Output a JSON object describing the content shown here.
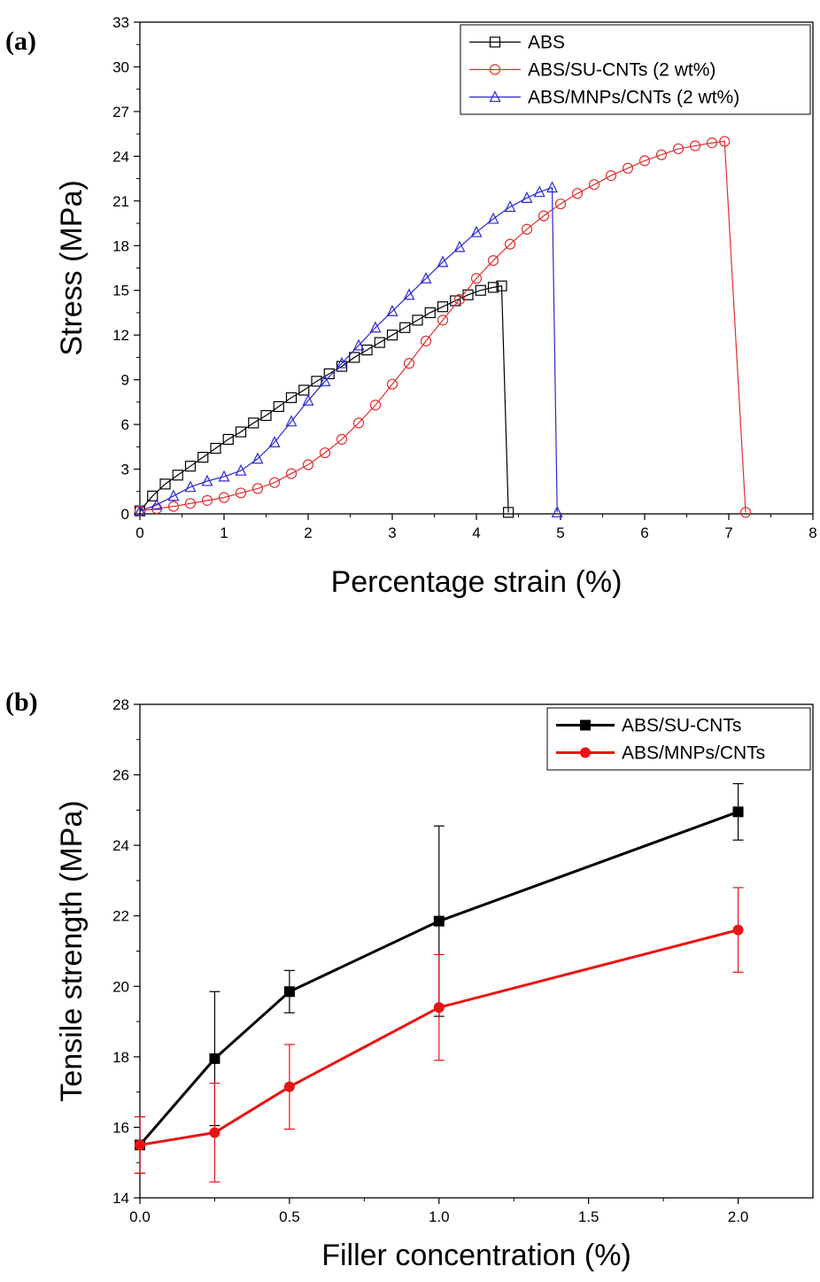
{
  "chart_data": [
    {
      "panel_label": "(a)",
      "type": "line",
      "xlabel": "Percentage strain (%)",
      "ylabel": "Stress (MPa)",
      "xlim": [
        0,
        8
      ],
      "ylim": [
        0,
        33
      ],
      "xticks": [
        "0",
        "1",
        "2",
        "3",
        "4",
        "5",
        "6",
        "7",
        "8"
      ],
      "yticks": [
        "0",
        "3",
        "6",
        "9",
        "12",
        "15",
        "18",
        "21",
        "24",
        "27",
        "30",
        "33"
      ],
      "legend": "top-right",
      "series": [
        {
          "name": "ABS",
          "color": "#000000",
          "marker": "square",
          "x": [
            0,
            0.15,
            0.3,
            0.45,
            0.6,
            0.75,
            0.9,
            1.05,
            1.2,
            1.35,
            1.5,
            1.65,
            1.8,
            1.95,
            2.1,
            2.25,
            2.4,
            2.55,
            2.7,
            2.85,
            3.0,
            3.15,
            3.3,
            3.45,
            3.6,
            3.75,
            3.9,
            4.05,
            4.2,
            4.3,
            4.38
          ],
          "y": [
            0.2,
            1.2,
            2.0,
            2.6,
            3.2,
            3.8,
            4.4,
            5.0,
            5.5,
            6.1,
            6.6,
            7.2,
            7.8,
            8.3,
            8.9,
            9.4,
            9.9,
            10.5,
            11.0,
            11.5,
            12.0,
            12.5,
            13.0,
            13.5,
            13.9,
            14.3,
            14.7,
            15.0,
            15.2,
            15.3,
            0.1
          ]
        },
        {
          "name": "ABS/SU-CNTs (2 wt%)",
          "color": "#e03030",
          "marker": "circle",
          "x": [
            0.0,
            0.2,
            0.4,
            0.6,
            0.8,
            1.0,
            1.2,
            1.4,
            1.6,
            1.8,
            2.0,
            2.2,
            2.4,
            2.6,
            2.8,
            3.0,
            3.2,
            3.4,
            3.6,
            3.8,
            4.0,
            4.2,
            4.4,
            4.6,
            4.8,
            5.0,
            5.2,
            5.4,
            5.6,
            5.8,
            6.0,
            6.2,
            6.4,
            6.6,
            6.8,
            6.95,
            7.2
          ],
          "y": [
            0.2,
            0.35,
            0.5,
            0.7,
            0.9,
            1.1,
            1.4,
            1.7,
            2.1,
            2.7,
            3.3,
            4.1,
            5.0,
            6.1,
            7.3,
            8.7,
            10.1,
            11.6,
            13.0,
            14.4,
            15.8,
            17.0,
            18.1,
            19.1,
            20.0,
            20.8,
            21.5,
            22.1,
            22.7,
            23.2,
            23.7,
            24.1,
            24.5,
            24.7,
            24.9,
            25.0,
            0.1
          ]
        },
        {
          "name": "ABS/MNPs/CNTs (2 wt%)",
          "color": "#2a2ad0",
          "marker": "triangle",
          "x": [
            0.0,
            0.2,
            0.4,
            0.6,
            0.8,
            1.0,
            1.2,
            1.4,
            1.6,
            1.8,
            2.0,
            2.2,
            2.4,
            2.6,
            2.8,
            3.0,
            3.2,
            3.4,
            3.6,
            3.8,
            4.0,
            4.2,
            4.4,
            4.6,
            4.75,
            4.9,
            4.96
          ],
          "y": [
            0.2,
            0.6,
            1.2,
            1.8,
            2.2,
            2.5,
            2.9,
            3.7,
            4.8,
            6.2,
            7.6,
            8.9,
            10.1,
            11.3,
            12.5,
            13.6,
            14.7,
            15.8,
            16.9,
            17.9,
            18.9,
            19.8,
            20.6,
            21.2,
            21.6,
            21.9,
            0.1
          ]
        }
      ]
    },
    {
      "panel_label": "(b)",
      "type": "line",
      "xlabel": "Filler concentration (%)",
      "ylabel": "Tensile strength (MPa)",
      "xlim": [
        0,
        2.25
      ],
      "ylim": [
        14,
        28
      ],
      "xticks": [
        "0.0",
        "0.5",
        "1.0",
        "1.5",
        "2.0"
      ],
      "yticks": [
        "14",
        "16",
        "18",
        "20",
        "22",
        "24",
        "26",
        "28"
      ],
      "legend": "top-right",
      "series": [
        {
          "name": "ABS/SU-CNTs",
          "color": "#000000",
          "marker": "filled-square",
          "x": [
            0,
            0.25,
            0.5,
            1.0,
            2.0
          ],
          "y": [
            15.5,
            17.95,
            19.85,
            21.85,
            24.95
          ],
          "err": [
            0.8,
            1.9,
            0.6,
            2.7,
            0.8
          ]
        },
        {
          "name": "ABS/MNPs/CNTs",
          "color": "#e81414",
          "marker": "filled-circle",
          "x": [
            0,
            0.25,
            0.5,
            1.0,
            2.0
          ],
          "y": [
            15.5,
            15.85,
            17.15,
            19.4,
            21.6
          ],
          "err": [
            0.8,
            1.4,
            1.2,
            1.5,
            1.2
          ]
        }
      ]
    }
  ]
}
